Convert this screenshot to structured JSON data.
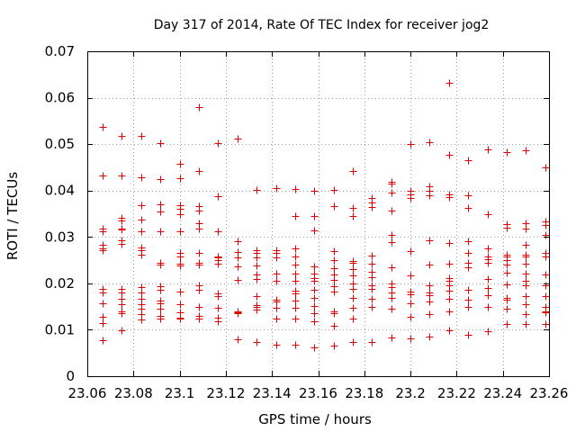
{
  "chart_data": {
    "type": "scatter",
    "title": "Day 317 of 2014, Rate Of TEC Index for receiver jog2",
    "xlabel": "GPS time / hours",
    "ylabel": "ROTI / TECUs",
    "xlim": [
      23.06,
      23.26
    ],
    "ylim": [
      0,
      0.07
    ],
    "x_ticks": [
      23.06,
      23.08,
      23.1,
      23.12,
      23.14,
      23.16,
      23.18,
      23.2,
      23.22,
      23.24,
      23.26
    ],
    "x_tick_labels": [
      "23.06",
      "23.08",
      "23.1",
      "23.12",
      "23.14",
      "23.16",
      "23.18",
      "23.2",
      "23.22",
      "23.24",
      "23.26"
    ],
    "y_ticks": [
      0,
      0.01,
      0.02,
      0.03,
      0.04,
      0.05,
      0.06,
      0.07
    ],
    "y_tick_labels": [
      "0",
      "0.01",
      "0.02",
      "0.03",
      "0.04",
      "0.05",
      "0.06",
      "0.07"
    ],
    "grid": true,
    "marker": "+",
    "series_color": "#e00000",
    "series": [
      {
        "name": "ROTI",
        "columns": [
          {
            "x": 23.0667,
            "y": [
              0.0538,
              0.0433,
              0.0318,
              0.0313,
              0.0283,
              0.0275,
              0.0272,
              0.0188,
              0.018,
              0.0157,
              0.0128,
              0.0115,
              0.0078
            ]
          },
          {
            "x": 23.075,
            "y": [
              0.0517,
              0.0433,
              0.0342,
              0.0335,
              0.0318,
              0.0317,
              0.0292,
              0.0285,
              0.0188,
              0.018,
              0.0167,
              0.0155,
              0.014,
              0.0135,
              0.0098
            ]
          },
          {
            "x": 23.0833,
            "y": [
              0.0517,
              0.0428,
              0.0368,
              0.0338,
              0.0312,
              0.0277,
              0.0272,
              0.0262,
              0.0192,
              0.018,
              0.0167,
              0.0155,
              0.0145,
              0.0133,
              0.0123
            ]
          },
          {
            "x": 23.0917,
            "y": [
              0.0503,
              0.0425,
              0.037,
              0.0355,
              0.0312,
              0.0245,
              0.024,
              0.0193,
              0.0187,
              0.0163,
              0.0157,
              0.0145,
              0.013,
              0.0125
            ]
          },
          {
            "x": 23.1,
            "y": [
              0.0457,
              0.0427,
              0.0368,
              0.036,
              0.035,
              0.0312,
              0.0265,
              0.0258,
              0.0243,
              0.0238,
              0.0183,
              0.0155,
              0.0138,
              0.0127,
              0.0125
            ]
          },
          {
            "x": 23.1083,
            "y": [
              0.058,
              0.0442,
              0.0367,
              0.0357,
              0.033,
              0.0318,
              0.0265,
              0.0245,
              0.024,
              0.0195,
              0.0187,
              0.015,
              0.013,
              0.0125
            ]
          },
          {
            "x": 23.1167,
            "y": [
              0.0502,
              0.0388,
              0.0313,
              0.0257,
              0.0255,
              0.025,
              0.0243,
              0.0178,
              0.0172,
              0.0147,
              0.0127,
              0.0118
            ]
          },
          {
            "x": 23.125,
            "y": [
              0.0512,
              0.029,
              0.0267,
              0.0255,
              0.0237,
              0.0207,
              0.014,
              0.0138,
              0.0135,
              0.008
            ]
          },
          {
            "x": 23.1333,
            "y": [
              0.0402,
              0.0272,
              0.0265,
              0.0255,
              0.0238,
              0.022,
              0.021,
              0.0172,
              0.0153,
              0.015,
              0.0143,
              0.0073
            ]
          },
          {
            "x": 23.1417,
            "y": [
              0.0405,
              0.0272,
              0.0265,
              0.0255,
              0.0222,
              0.0205,
              0.0165,
              0.016,
              0.0148,
              0.0125,
              0.0068
            ]
          },
          {
            "x": 23.15,
            "y": [
              0.0403,
              0.0345,
              0.0275,
              0.0258,
              0.024,
              0.0222,
              0.0205,
              0.0185,
              0.0178,
              0.0162,
              0.0148,
              0.0125,
              0.0068
            ]
          },
          {
            "x": 23.1583,
            "y": [
              0.04,
              0.0345,
              0.0315,
              0.0237,
              0.0222,
              0.0212,
              0.0205,
              0.0187,
              0.0168,
              0.0152,
              0.0135,
              0.0118,
              0.0063
            ]
          },
          {
            "x": 23.1667,
            "y": [
              0.0402,
              0.0367,
              0.027,
              0.025,
              0.0232,
              0.022,
              0.0207,
              0.0193,
              0.0183,
              0.014,
              0.0135,
              0.0108,
              0.0065
            ]
          },
          {
            "x": 23.175,
            "y": [
              0.0442,
              0.0362,
              0.0345,
              0.0248,
              0.0245,
              0.023,
              0.0217,
              0.02,
              0.0188,
              0.0168,
              0.0147,
              0.0125,
              0.0073
            ]
          },
          {
            "x": 23.1833,
            "y": [
              0.0383,
              0.0375,
              0.0365,
              0.026,
              0.0242,
              0.0225,
              0.0213,
              0.0195,
              0.0188,
              0.0167,
              0.015,
              0.0073
            ]
          },
          {
            "x": 23.1917,
            "y": [
              0.0418,
              0.0415,
              0.0395,
              0.0357,
              0.0305,
              0.0288,
              0.0235,
              0.02,
              0.0192,
              0.018,
              0.0168,
              0.0145,
              0.0083
            ]
          },
          {
            "x": 23.2,
            "y": [
              0.05,
              0.04,
              0.0392,
              0.0383,
              0.027,
              0.0217,
              0.0182,
              0.0177,
              0.0157,
              0.0128,
              0.0082
            ]
          },
          {
            "x": 23.2083,
            "y": [
              0.0505,
              0.041,
              0.04,
              0.039,
              0.0292,
              0.024,
              0.0195,
              0.018,
              0.0175,
              0.016,
              0.0133,
              0.0085
            ]
          },
          {
            "x": 23.2167,
            "y": [
              0.0633,
              0.0477,
              0.0392,
              0.0385,
              0.0287,
              0.0242,
              0.0212,
              0.0205,
              0.0195,
              0.0185,
              0.0167,
              0.014,
              0.0098
            ]
          },
          {
            "x": 23.225,
            "y": [
              0.0465,
              0.039,
              0.0363,
              0.029,
              0.0265,
              0.0245,
              0.0235,
              0.0187,
              0.0165,
              0.015,
              0.009
            ]
          },
          {
            "x": 23.2333,
            "y": [
              0.0488,
              0.035,
              0.0275,
              0.0258,
              0.0252,
              0.0245,
              0.021,
              0.019,
              0.0175,
              0.015,
              0.0097
            ]
          },
          {
            "x": 23.2417,
            "y": [
              0.0483,
              0.0327,
              0.032,
              0.0262,
              0.0258,
              0.025,
              0.024,
              0.0223,
              0.0197,
              0.0168,
              0.0165,
              0.0145,
              0.0112
            ]
          },
          {
            "x": 23.25,
            "y": [
              0.0487,
              0.033,
              0.0318,
              0.0283,
              0.0262,
              0.0258,
              0.0243,
              0.0222,
              0.0205,
              0.0195,
              0.0172,
              0.0155,
              0.0133,
              0.0112
            ]
          },
          {
            "x": 23.2583,
            "y": [
              0.045,
              0.0333,
              0.0325,
              0.0305,
              0.0265,
              0.0258,
              0.022,
              0.0195,
              0.0172,
              0.015,
              0.014,
              0.0137,
              0.0112
            ]
          }
        ]
      }
    ]
  }
}
